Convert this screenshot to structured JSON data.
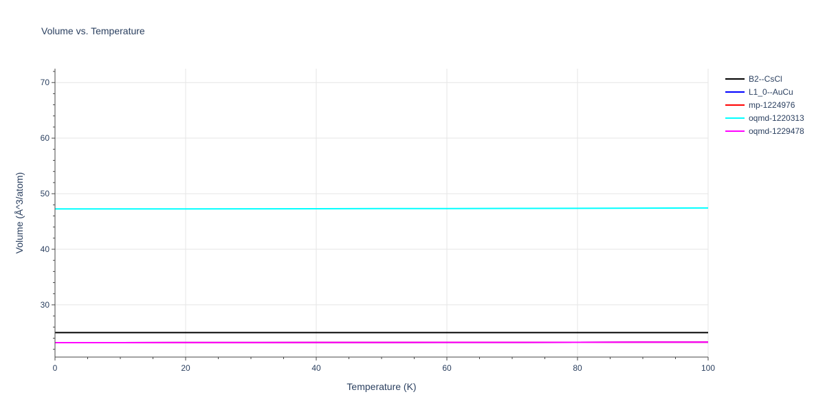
{
  "chart_data": {
    "type": "line",
    "title": "Volume vs. Temperature",
    "xlabel": "Temperature (K)",
    "ylabel": "Volume (Å^3/atom)",
    "xlim": [
      0,
      100
    ],
    "ylim": [
      20.6,
      72.5
    ],
    "xticks": [
      0,
      20,
      40,
      60,
      80,
      100
    ],
    "xtick_labels": [
      "0",
      "20",
      "40",
      "60",
      "80",
      "100"
    ],
    "yticks": [
      30,
      40,
      50,
      60,
      70
    ],
    "ytick_labels": [
      "30",
      "40",
      "50",
      "60",
      "70"
    ],
    "grid": true,
    "legend_position": "top-right outside",
    "x": [
      0,
      10,
      20,
      30,
      40,
      50,
      60,
      70,
      80,
      90,
      100
    ],
    "series": [
      {
        "name": "B2--CsCl",
        "color": "#000000",
        "values": [
          25.0,
          25.0,
          25.0,
          25.0,
          25.0,
          25.0,
          25.0,
          25.0,
          25.0,
          25.0,
          25.0
        ]
      },
      {
        "name": "L1_0--AuCu",
        "color": "#0000ff",
        "values": [
          23.2,
          23.2,
          23.21,
          23.21,
          23.22,
          23.23,
          23.24,
          23.25,
          23.26,
          23.28,
          23.3
        ]
      },
      {
        "name": "mp-1224976",
        "color": "#ff0000",
        "values": [
          23.2,
          23.2,
          23.21,
          23.21,
          23.22,
          23.23,
          23.24,
          23.25,
          23.26,
          23.28,
          23.3
        ]
      },
      {
        "name": "oqmd-1220313",
        "color": "#00ffff",
        "values": [
          47.25,
          47.26,
          47.27,
          47.28,
          47.29,
          47.31,
          47.33,
          47.35,
          47.37,
          47.4,
          47.43
        ]
      },
      {
        "name": "oqmd-1229478",
        "color": "#ff00ff",
        "values": [
          23.2,
          23.2,
          23.21,
          23.21,
          23.22,
          23.23,
          23.24,
          23.25,
          23.26,
          23.28,
          23.3
        ]
      }
    ]
  }
}
